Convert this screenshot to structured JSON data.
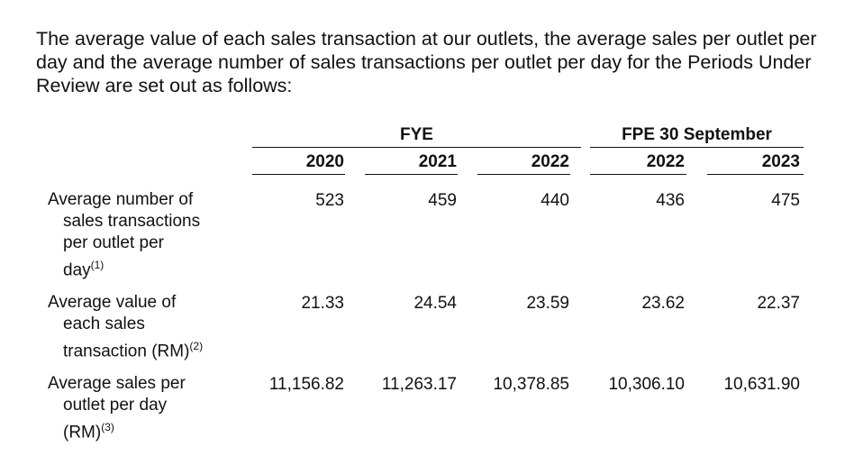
{
  "intro": "The average value of each sales transaction at our outlets, the average sales per outlet per day and the average number of sales transactions per outlet per day for the Periods Under Review are set out as follows:",
  "headers": {
    "fye": "FYE",
    "fpe": "FPE 30 September",
    "years": [
      "2020",
      "2021",
      "2022",
      "2022",
      "2023"
    ]
  },
  "rows": [
    {
      "label_lines": [
        "Average number of",
        "sales transactions",
        "per outlet per",
        "day"
      ],
      "note": "(1)",
      "values": [
        "523",
        "459",
        "440",
        "436",
        "475"
      ]
    },
    {
      "label_lines": [
        "Average value of",
        "each sales",
        "transaction (RM)"
      ],
      "note": "(2)",
      "values": [
        "21.33",
        "24.54",
        "23.59",
        "23.62",
        "22.37"
      ]
    },
    {
      "label_lines": [
        "Average sales per",
        "outlet per day",
        "(RM)"
      ],
      "note": "(3)",
      "values": [
        "11,156.82",
        "11,263.17",
        "10,378.85",
        "10,306.10",
        "10,631.90"
      ]
    }
  ]
}
